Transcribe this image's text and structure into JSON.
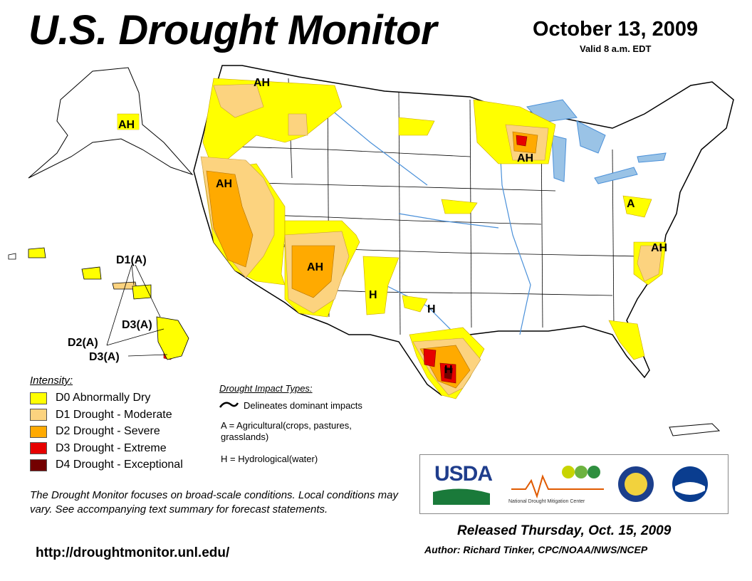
{
  "title": "U.S. Drought Monitor",
  "date": "October 13, 2009",
  "valid": "Valid 8 a.m. EDT",
  "colors": {
    "d0": "#ffff00",
    "d1": "#fcd37f",
    "d2": "#ffaa00",
    "d3": "#e60000",
    "d4": "#730000",
    "water": "#9ac3e6",
    "boundary": "#000000"
  },
  "legend": {
    "title": "Intensity:",
    "items": [
      {
        "label": "D0 Abnormally Dry",
        "color": "#ffff00"
      },
      {
        "label": "D1 Drought - Moderate",
        "color": "#fcd37f"
      },
      {
        "label": "D2 Drought - Severe",
        "color": "#ffaa00"
      },
      {
        "label": "D3 Drought - Extreme",
        "color": "#e60000"
      },
      {
        "label": "D4 Drought - Exceptional",
        "color": "#730000"
      }
    ]
  },
  "impacts": {
    "title": "Drought Impact Types:",
    "delineates": "Delineates dominant impacts",
    "ag": "A = Agricultural(crops, pastures, grasslands)",
    "hyd": "H = Hydrological(water)"
  },
  "map_labels": {
    "ah_wa": "AH",
    "ah_ak": "AH",
    "ah_ca": "AH",
    "ah_az": "AH",
    "ah_wi": "AH",
    "a_pa": "A",
    "ah_va": "AH",
    "h_nm": "H",
    "h_tx": "H",
    "h_stx": "H",
    "hi_d1": "D1(A)",
    "hi_d2": "D2(A)",
    "hi_d3a": "D3(A)",
    "hi_d3b": "D3(A)"
  },
  "disclaimer": "The Drought Monitor focuses on broad-scale conditions. Local conditions may vary. See accompanying text summary for forecast statements.",
  "url": "http://droughtmonitor.unl.edu/",
  "released": "Released Thursday, Oct. 15, 2009",
  "author": "Author: Richard Tinker, CPC/NOAA/NWS/NCEP",
  "logos": {
    "usda": "USDA",
    "ndmc": "National Drought Mitigation Center"
  }
}
